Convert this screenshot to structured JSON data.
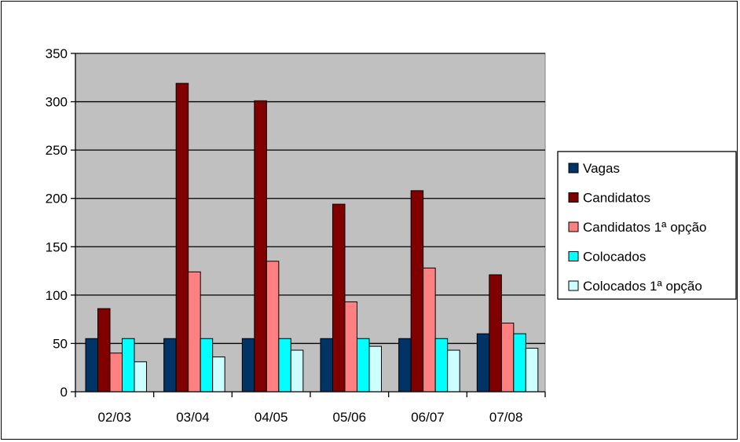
{
  "chart_data": {
    "type": "bar",
    "title": "",
    "xlabel": "",
    "ylabel": "",
    "categories": [
      "02/03",
      "03/04",
      "04/05",
      "05/06",
      "06/07",
      "07/08"
    ],
    "ylim": [
      0,
      350
    ],
    "yticks": [
      0,
      50,
      100,
      150,
      200,
      250,
      300,
      350
    ],
    "grid": true,
    "plot_background": "#c0c0c0",
    "legend_position": "right",
    "series": [
      {
        "name": "Vagas",
        "color": "#003366",
        "values": [
          55,
          55,
          55,
          55,
          55,
          60
        ]
      },
      {
        "name": "Candidatos",
        "color": "#800000",
        "values": [
          86,
          319,
          301,
          194,
          208,
          121
        ]
      },
      {
        "name": "Candidatos 1ª opção",
        "color": "#ff8080",
        "values": [
          40,
          124,
          135,
          93,
          128,
          71
        ]
      },
      {
        "name": "Colocados",
        "color": "#00ffff",
        "values": [
          55,
          55,
          55,
          55,
          55,
          60
        ]
      },
      {
        "name": "Colocados 1ª opção",
        "color": "#ccffff",
        "values": [
          31,
          36,
          43,
          47,
          43,
          45
        ]
      }
    ]
  }
}
